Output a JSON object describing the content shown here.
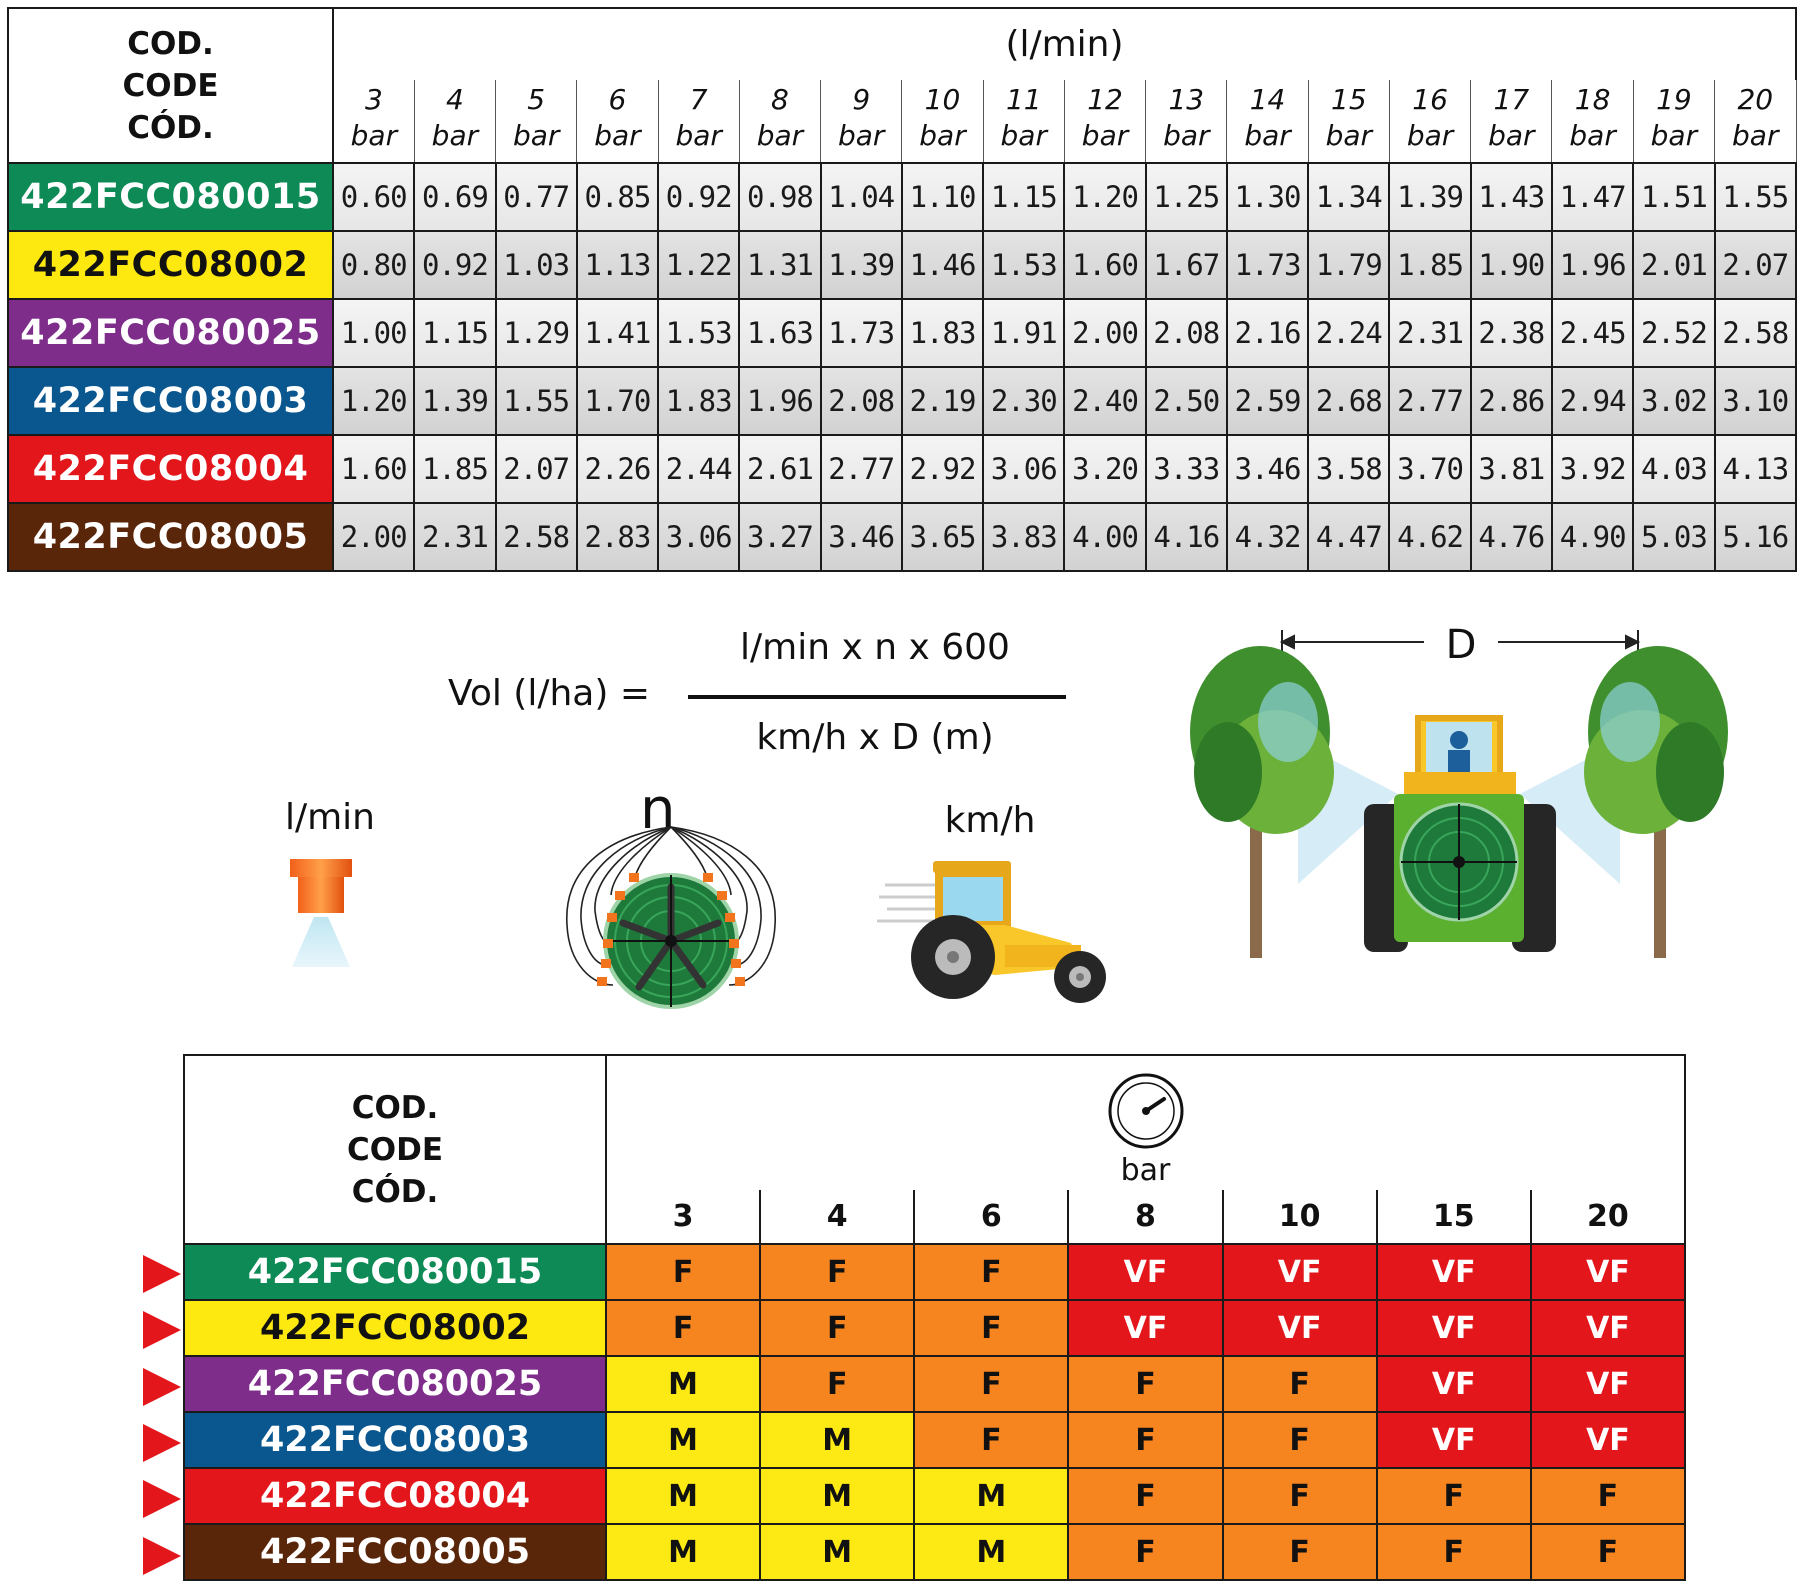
{
  "flow_table": {
    "code_head": [
      "COD.",
      "CODE",
      "CÓD."
    ],
    "unit": "(l/min)",
    "pressures": [
      "3",
      "4",
      "5",
      "6",
      "7",
      "8",
      "9",
      "10",
      "11",
      "12",
      "13",
      "14",
      "15",
      "16",
      "17",
      "18",
      "19",
      "20"
    ],
    "pressure_unit": "bar",
    "rows": [
      {
        "code": "422FCC080015",
        "bg": "#0d8a55",
        "fg": "#ffffff",
        "values": [
          "0.60",
          "0.69",
          "0.77",
          "0.85",
          "0.92",
          "0.98",
          "1.04",
          "1.10",
          "1.15",
          "1.20",
          "1.25",
          "1.30",
          "1.34",
          "1.39",
          "1.43",
          "1.47",
          "1.51",
          "1.55"
        ]
      },
      {
        "code": "422FCC08002",
        "bg": "#fde910",
        "fg": "#111111",
        "values": [
          "0.80",
          "0.92",
          "1.03",
          "1.13",
          "1.22",
          "1.31",
          "1.39",
          "1.46",
          "1.53",
          "1.60",
          "1.67",
          "1.73",
          "1.79",
          "1.85",
          "1.90",
          "1.96",
          "2.01",
          "2.07"
        ]
      },
      {
        "code": "422FCC080025",
        "bg": "#7e2d8b",
        "fg": "#ffffff",
        "values": [
          "1.00",
          "1.15",
          "1.29",
          "1.41",
          "1.53",
          "1.63",
          "1.73",
          "1.83",
          "1.91",
          "2.00",
          "2.08",
          "2.16",
          "2.24",
          "2.31",
          "2.38",
          "2.45",
          "2.52",
          "2.58"
        ]
      },
      {
        "code": "422FCC08003",
        "bg": "#0a578f",
        "fg": "#ffffff",
        "values": [
          "1.20",
          "1.39",
          "1.55",
          "1.70",
          "1.83",
          "1.96",
          "2.08",
          "2.19",
          "2.30",
          "2.40",
          "2.50",
          "2.59",
          "2.68",
          "2.77",
          "2.86",
          "2.94",
          "3.02",
          "3.10"
        ]
      },
      {
        "code": "422FCC08004",
        "bg": "#e3161b",
        "fg": "#ffffff",
        "values": [
          "1.60",
          "1.85",
          "2.07",
          "2.26",
          "2.44",
          "2.61",
          "2.77",
          "2.92",
          "3.06",
          "3.20",
          "3.33",
          "3.46",
          "3.58",
          "3.70",
          "3.81",
          "3.92",
          "4.03",
          "4.13"
        ]
      },
      {
        "code": "422FCC08005",
        "bg": "#5a2609",
        "fg": "#ffffff",
        "values": [
          "2.00",
          "2.31",
          "2.58",
          "2.83",
          "3.06",
          "3.27",
          "3.46",
          "3.65",
          "3.83",
          "4.00",
          "4.16",
          "4.32",
          "4.47",
          "4.62",
          "4.76",
          "4.90",
          "5.03",
          "5.16"
        ]
      }
    ]
  },
  "formula": {
    "lhs": "Vol (l/ha) =",
    "numerator": "l/min x n x 600",
    "denominator": "km/h x D (m)"
  },
  "illustrations": {
    "nozzle_label": "l/min",
    "fan_label": "n",
    "tractor_label": "km/h",
    "distance_label": "D"
  },
  "droplet_table": {
    "code_head": [
      "COD.",
      "CODE",
      "CÓD."
    ],
    "gauge_unit": "bar",
    "pressures": [
      "3",
      "4",
      "6",
      "8",
      "10",
      "15",
      "20"
    ],
    "class_colors": {
      "M": "#fdea14",
      "F": "#f6851f",
      "VF": "#e3161b"
    },
    "rows": [
      {
        "code": "422FCC080015",
        "bg": "#0d8a55",
        "fg": "#ffffff",
        "classes": [
          "F",
          "F",
          "F",
          "VF",
          "VF",
          "VF",
          "VF"
        ]
      },
      {
        "code": "422FCC08002",
        "bg": "#fde910",
        "fg": "#111111",
        "classes": [
          "F",
          "F",
          "F",
          "VF",
          "VF",
          "VF",
          "VF"
        ]
      },
      {
        "code": "422FCC080025",
        "bg": "#7e2d8b",
        "fg": "#ffffff",
        "classes": [
          "M",
          "F",
          "F",
          "F",
          "F",
          "VF",
          "VF"
        ]
      },
      {
        "code": "422FCC08003",
        "bg": "#0a578f",
        "fg": "#ffffff",
        "classes": [
          "M",
          "M",
          "F",
          "F",
          "F",
          "VF",
          "VF"
        ]
      },
      {
        "code": "422FCC08004",
        "bg": "#e3161b",
        "fg": "#ffffff",
        "classes": [
          "M",
          "M",
          "M",
          "F",
          "F",
          "F",
          "F"
        ]
      },
      {
        "code": "422FCC08005",
        "bg": "#5a2609",
        "fg": "#ffffff",
        "classes": [
          "M",
          "M",
          "M",
          "F",
          "F",
          "F",
          "F"
        ]
      }
    ]
  }
}
